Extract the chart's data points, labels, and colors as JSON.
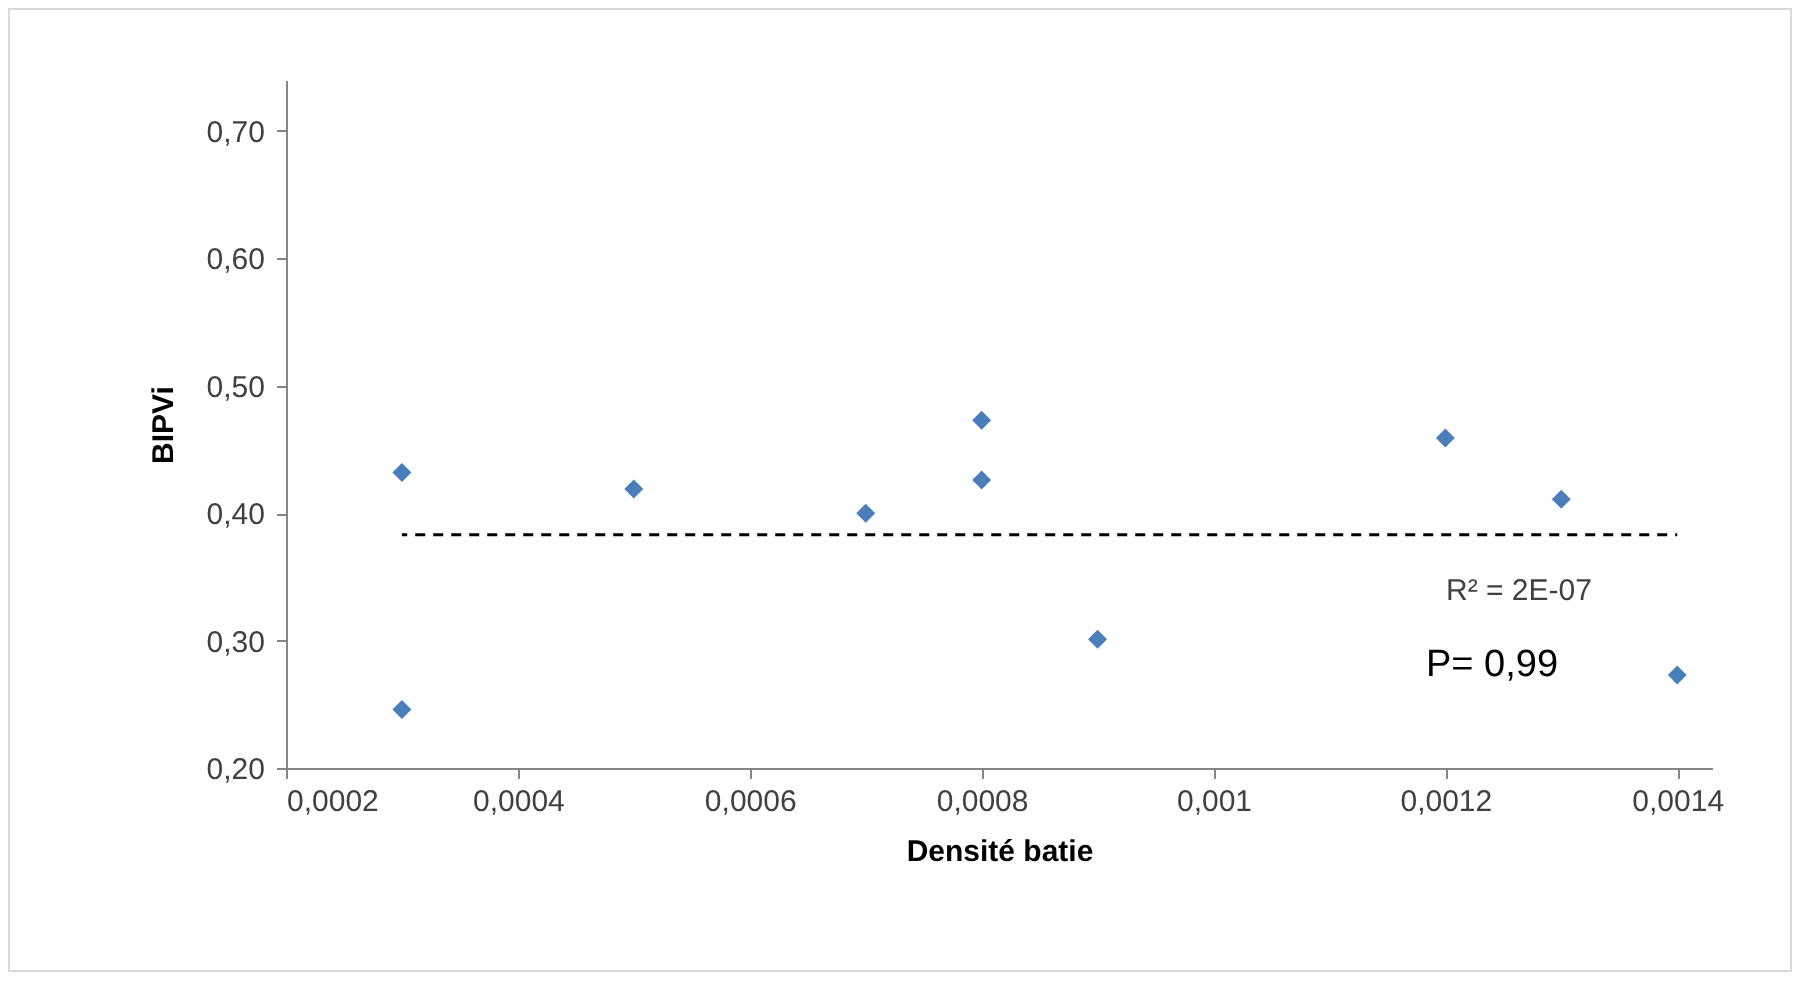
{
  "chart_data": {
    "type": "scatter",
    "xlabel": "Densité batie",
    "ylabel": "BIPVi",
    "xlim": [
      0.0002,
      0.00143
    ],
    "ylim": [
      0.2,
      0.74
    ],
    "xticks": [
      {
        "value": 0.0002,
        "label": "0,0002"
      },
      {
        "value": 0.0004,
        "label": "0,0004"
      },
      {
        "value": 0.0006,
        "label": "0,0006"
      },
      {
        "value": 0.0008,
        "label": "0,0008"
      },
      {
        "value": 0.001,
        "label": "0,001"
      },
      {
        "value": 0.0012,
        "label": "0,0012"
      },
      {
        "value": 0.0014,
        "label": "0,0014"
      }
    ],
    "yticks": [
      {
        "value": 0.2,
        "label": "0,20"
      },
      {
        "value": 0.3,
        "label": "0,30"
      },
      {
        "value": 0.4,
        "label": "0,40"
      },
      {
        "value": 0.5,
        "label": "0,50"
      },
      {
        "value": 0.6,
        "label": "0,60"
      },
      {
        "value": 0.7,
        "label": "0,70"
      }
    ],
    "grid": false,
    "marker": "diamond",
    "series": [
      {
        "type": "scatter",
        "color": "#4a7ebb",
        "x": [
          0.0003,
          0.0003,
          0.0005,
          0.0007,
          0.0008,
          0.0008,
          0.0009,
          0.0012,
          0.0013,
          0.0014
        ],
        "values": [
          0.432,
          0.246,
          0.419,
          0.4,
          0.473,
          0.426,
          0.301,
          0.459,
          0.411,
          0.273
        ]
      },
      {
        "type": "line",
        "color": "#000000",
        "line_style": "dashed",
        "marker": "none",
        "x": [
          0.0003,
          0.0014
        ],
        "values": [
          0.383,
          0.383
        ]
      }
    ],
    "annotations": [
      "R² = 2E-07",
      "P= 0,99"
    ]
  }
}
